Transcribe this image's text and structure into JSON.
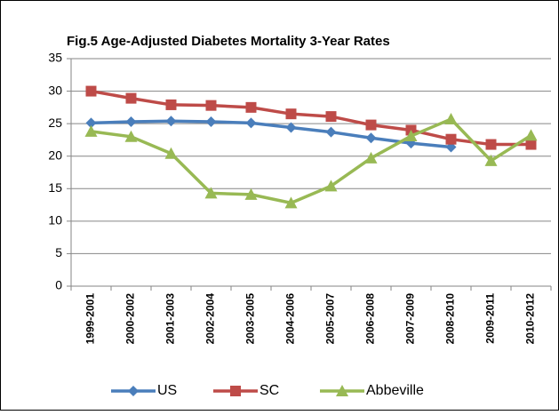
{
  "chart_data": {
    "type": "line",
    "title": "Fig.5  Age-Adjusted Diabetes Mortality 3-Year Rates",
    "categories": [
      "1999-2001",
      "2000-2002",
      "2001-2003",
      "2002-2004",
      "2003-2005",
      "2004-2006",
      "2005-2007",
      "2006-2008",
      "2007-2009",
      "2008-2010",
      "2009-2011",
      "2010-2012"
    ],
    "series": [
      {
        "name": "US",
        "color": "#4a7ebb",
        "marker": "diamond",
        "values": [
          25.1,
          25.3,
          25.4,
          25.3,
          25.1,
          24.4,
          23.7,
          22.8,
          22.0,
          21.4,
          null,
          null
        ]
      },
      {
        "name": "SC",
        "color": "#be4b48",
        "marker": "square",
        "values": [
          30.0,
          28.9,
          27.9,
          27.8,
          27.5,
          26.5,
          26.1,
          24.8,
          24.0,
          22.6,
          21.8,
          21.8
        ]
      },
      {
        "name": "Abbeville",
        "color": "#98b954",
        "marker": "triangle",
        "values": [
          23.8,
          23.0,
          20.4,
          14.3,
          14.1,
          12.8,
          15.4,
          19.7,
          23.1,
          25.7,
          19.3,
          23.2
        ]
      }
    ],
    "ylim": [
      0,
      35
    ],
    "yticks": [
      0,
      5,
      10,
      15,
      20,
      25,
      30,
      35
    ],
    "grid": true,
    "legend": "bottom"
  }
}
